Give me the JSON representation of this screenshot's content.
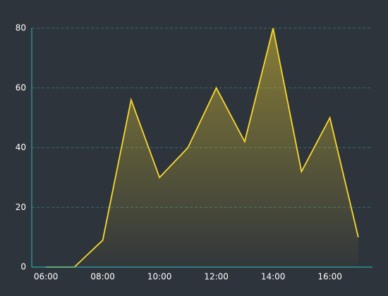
{
  "chart_data": {
    "type": "area",
    "categories": [
      "06:00",
      null,
      "08:00",
      null,
      "10:00",
      null,
      "12:00",
      null,
      "14:00",
      null,
      "16:00",
      null
    ],
    "values": [
      0,
      0,
      9,
      56,
      30,
      40,
      60,
      42,
      80,
      32,
      50,
      10
    ],
    "color": "#f7d830",
    "axis_color": "#2aa3a8",
    "grid_color": "#2f6e70",
    "ylim": [
      0,
      80
    ],
    "yticks": [
      0,
      20,
      40,
      60,
      80
    ],
    "grid": true
  }
}
